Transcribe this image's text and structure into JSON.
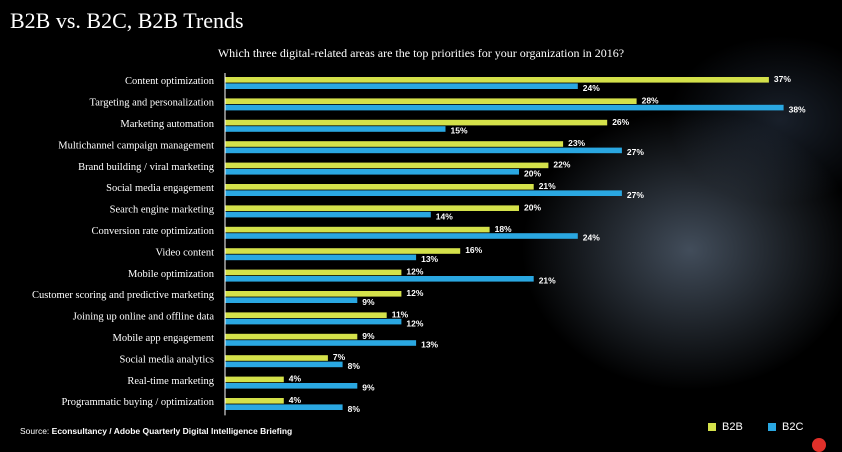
{
  "slide": {
    "title": "B2B vs. B2C, B2B Trends",
    "subtitle": "Which three digital-related areas are the top priorities for  your organization in 2016?",
    "source_prefix": "Source: ",
    "source_text": "Econsultancy / Adobe Quarterly Digital Intelligence Briefing"
  },
  "colors": {
    "b2b": "#d4e14a",
    "b2c": "#2aa7e1",
    "grid": "#ffffff"
  },
  "chart_data": {
    "type": "bar",
    "orientation": "horizontal",
    "title": "Which three digital-related areas are the top priorities for  your organization in 2016?",
    "categories": [
      "Content optimization",
      "Targeting and personalization",
      "Marketing automation",
      "Multichannel campaign management",
      "Brand building / viral marketing",
      "Social media engagement",
      "Search engine marketing",
      "Conversion rate optimization",
      "Video content",
      "Mobile optimization",
      "Customer scoring and predictive marketing",
      "Joining up online and offline data",
      "Mobile app engagement",
      "Social media analytics",
      "Real-time marketing",
      "Programmatic buying / optimization"
    ],
    "series": [
      {
        "name": "B2B",
        "values": [
          37,
          28,
          26,
          23,
          22,
          21,
          20,
          18,
          16,
          12,
          12,
          11,
          9,
          7,
          4,
          4
        ]
      },
      {
        "name": "B2C",
        "values": [
          24,
          38,
          15,
          27,
          20,
          27,
          14,
          24,
          13,
          21,
          9,
          12,
          13,
          8,
          9,
          8
        ]
      }
    ],
    "value_suffix": "%",
    "xlim": [
      0,
      40
    ],
    "legend": "bottom-right"
  }
}
